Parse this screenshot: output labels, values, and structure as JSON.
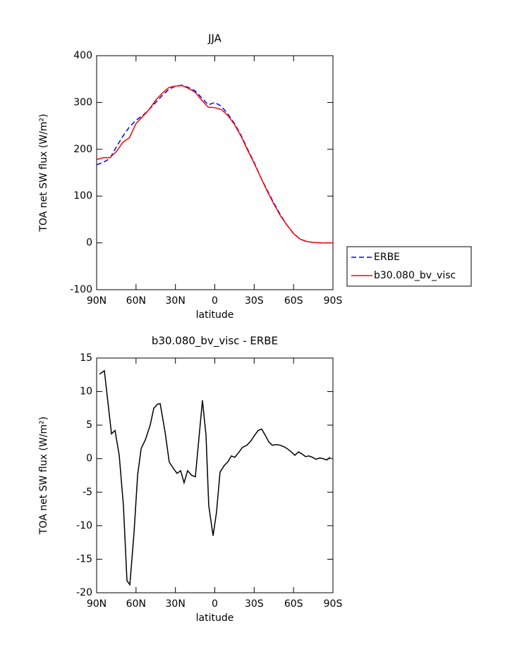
{
  "chart_data": [
    {
      "type": "line",
      "title": "JJA",
      "xlabel": "latitude",
      "ylabel": "TOA net SW flux (W/m²)",
      "x": [
        90,
        85,
        80,
        75,
        70,
        65,
        60,
        55,
        50,
        45,
        40,
        35,
        30,
        25,
        20,
        15,
        10,
        5,
        0,
        -5,
        -10,
        -15,
        -20,
        -25,
        -30,
        -35,
        -40,
        -45,
        -50,
        -55,
        -60,
        -65,
        -70,
        -75,
        -80,
        -85,
        -90
      ],
      "series": [
        {
          "name": "ERBE",
          "color": "#0000ff",
          "linestyle": "dashed",
          "values": [
            167,
            172,
            180,
            205,
            228,
            248,
            262,
            272,
            285,
            300,
            315,
            328,
            335,
            337,
            332,
            325,
            310,
            295,
            300,
            292,
            275,
            255,
            230,
            200,
            172,
            140,
            112,
            85,
            60,
            38,
            20,
            8,
            3,
            1,
            0,
            0,
            0
          ]
        },
        {
          "name": "b30.080_bv_visc",
          "color": "#ff0000",
          "linestyle": "solid",
          "values": [
            178,
            182,
            182,
            195,
            215,
            225,
            255,
            270,
            285,
            305,
            320,
            332,
            335,
            336,
            330,
            322,
            305,
            290,
            289,
            285,
            272,
            253,
            228,
            198,
            170,
            140,
            110,
            83,
            58,
            38,
            20,
            8,
            3,
            1,
            0,
            0,
            0
          ]
        }
      ],
      "xlim": [
        90,
        -90
      ],
      "xticks": [
        {
          "value": 90,
          "label": "90N"
        },
        {
          "value": 60,
          "label": "60N"
        },
        {
          "value": 30,
          "label": "30N"
        },
        0,
        {
          "value": -30,
          "label": "30S"
        },
        {
          "value": -60,
          "label": "60S"
        },
        {
          "value": -90,
          "label": "90S"
        }
      ],
      "ylim": [
        -100,
        400
      ],
      "yticks": [
        -100,
        0,
        100,
        200,
        300,
        400
      ],
      "legend": "right"
    },
    {
      "type": "line",
      "title": "b30.080_bv_visc - ERBE",
      "xlabel": "latitude",
      "ylabel": "TOA net SW flux (W/m²)",
      "x": [
        87.9,
        84.1,
        78.7,
        76,
        72.8,
        69.6,
        66.9,
        64.7,
        61.5,
        58.8,
        56.1,
        52.9,
        49.2,
        46.5,
        43.8,
        41.6,
        37.9,
        34.7,
        31.4,
        28.7,
        26,
        23.4,
        20.7,
        17.5,
        14.8,
        12.1,
        9.4,
        6.7,
        4.6,
        1.3,
        -1.3,
        -4,
        -7.3,
        -9.9,
        -12.6,
        -15.3,
        -18.5,
        -21.2,
        -24.5,
        -27.7,
        -30.4,
        -33,
        -35.7,
        -38.4,
        -41.1,
        -43.8,
        -47,
        -49.7,
        -52.4,
        -55.1,
        -58.3,
        -61,
        -63.7,
        -66.4,
        -69.1,
        -71.7,
        -74.4,
        -77.1,
        -79.8,
        -82.5,
        -85.2,
        -87.9
      ],
      "values": [
        12.6,
        13.1,
        3.7,
        4.2,
        0.5,
        -7,
        -18.2,
        -18.8,
        -11,
        -2.5,
        1.5,
        2.8,
        5,
        7.5,
        8.1,
        8.2,
        4,
        -0.5,
        -1.5,
        -2.2,
        -1.8,
        -3.6,
        -1.8,
        -2.5,
        -2.7,
        3,
        8.7,
        3.5,
        -7,
        -11.5,
        -8,
        -2,
        -1,
        -0.5,
        0.4,
        0.2,
        1,
        1.7,
        2,
        2.7,
        3.5,
        4.2,
        4.4,
        3.5,
        2.5,
        2,
        2.1,
        2,
        1.8,
        1.5,
        1,
        0.5,
        1,
        0.7,
        0.3,
        0.4,
        0.2,
        -0.1,
        0.1,
        0,
        -0.2,
        0.2
      ],
      "color": "#000000",
      "xlim": [
        90,
        -90
      ],
      "xticks": [
        {
          "value": 90,
          "label": "90N"
        },
        {
          "value": 60,
          "label": "60N"
        },
        {
          "value": 30,
          "label": "30N"
        },
        0,
        {
          "value": -30,
          "label": "30S"
        },
        {
          "value": -60,
          "label": "60S"
        },
        {
          "value": -90,
          "label": "90S"
        }
      ],
      "ylim": [
        -20,
        15
      ],
      "yticks": [
        -20,
        -15,
        -10,
        -5,
        0,
        5,
        10,
        15
      ]
    }
  ]
}
